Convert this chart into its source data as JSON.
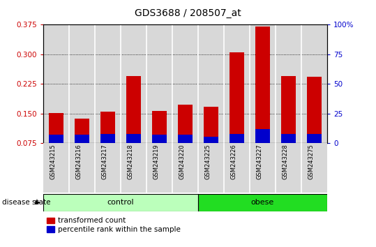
{
  "title": "GDS3688 / 208507_at",
  "samples": [
    "GSM243215",
    "GSM243216",
    "GSM243217",
    "GSM243218",
    "GSM243219",
    "GSM243220",
    "GSM243225",
    "GSM243226",
    "GSM243227",
    "GSM243228",
    "GSM243275"
  ],
  "red_values": [
    0.152,
    0.138,
    0.155,
    0.245,
    0.157,
    0.172,
    0.168,
    0.305,
    0.37,
    0.245,
    0.243
  ],
  "blue_values": [
    0.097,
    0.097,
    0.099,
    0.099,
    0.096,
    0.096,
    0.091,
    0.099,
    0.11,
    0.099,
    0.099
  ],
  "n_control": 6,
  "n_obese": 5,
  "ylim_left": [
    0.075,
    0.375
  ],
  "ylim_right": [
    0,
    100
  ],
  "yticks_left": [
    0.075,
    0.15,
    0.225,
    0.3,
    0.375
  ],
  "yticks_right": [
    0,
    25,
    50,
    75,
    100
  ],
  "right_yticklabels": [
    "0",
    "25",
    "50",
    "75",
    "100%"
  ],
  "bar_width": 0.55,
  "bar_color_red": "#cc0000",
  "bar_color_blue": "#0000cc",
  "bg_color_plot": "#d8d8d8",
  "control_color": "#bbffbb",
  "obese_color": "#22dd22",
  "left_tick_color": "#cc0000",
  "right_tick_color": "#0000cc",
  "title_fontsize": 10,
  "legend_label_red": "transformed count",
  "legend_label_blue": "percentile rank within the sample",
  "disease_state_label": "disease state",
  "control_label": "control",
  "obese_label": "obese"
}
